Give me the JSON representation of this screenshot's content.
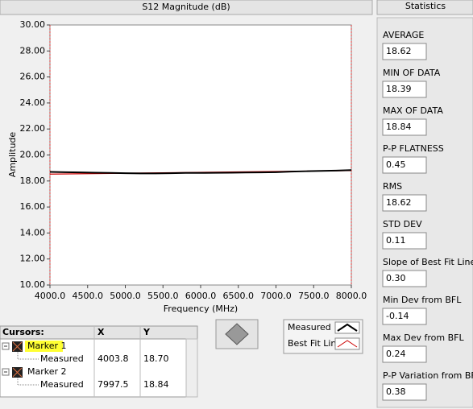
{
  "chart_data": {
    "type": "line",
    "title": "S12 Magnitude (dB)",
    "x_label": "Frequency (MHz)",
    "y_label": "Amplitude",
    "xlim": [
      4000,
      8000
    ],
    "xticks": [
      {
        "value": 4000,
        "label": "4000.0"
      },
      {
        "value": 4500,
        "label": "4500.0"
      },
      {
        "value": 5000,
        "label": "5000.0"
      },
      {
        "value": 5500,
        "label": "5500.0"
      },
      {
        "value": 6000,
        "label": "6000.0"
      },
      {
        "value": 6500,
        "label": "6500.0"
      },
      {
        "value": 7000,
        "label": "7000.0"
      },
      {
        "value": 7500,
        "label": "7500.0"
      },
      {
        "value": 8000,
        "label": "8000.0"
      }
    ],
    "ylim": [
      10,
      30
    ],
    "yticks": [
      {
        "value": 10,
        "label": "10.00"
      },
      {
        "value": 12,
        "label": "12.00"
      },
      {
        "value": 14,
        "label": "14.00"
      },
      {
        "value": 16,
        "label": "16.00"
      },
      {
        "value": 18,
        "label": "18.00"
      },
      {
        "value": 20,
        "label": "20.00"
      },
      {
        "value": 22,
        "label": "22.00"
      },
      {
        "value": 24,
        "label": "24.00"
      },
      {
        "value": 26,
        "label": "26.00"
      },
      {
        "value": 28,
        "label": "28.00"
      },
      {
        "value": 30,
        "label": "30.00"
      }
    ],
    "series": [
      {
        "name": "Measured",
        "color": "#000000",
        "x": [
          4000,
          4200,
          4400,
          4600,
          4800,
          5000,
          5200,
          5400,
          5600,
          5800,
          6000,
          6200,
          6400,
          6600,
          6800,
          7000,
          7200,
          7400,
          7600,
          7800,
          8000
        ],
        "values": [
          18.7,
          18.68,
          18.66,
          18.64,
          18.62,
          18.6,
          18.58,
          18.58,
          18.6,
          18.62,
          18.62,
          18.63,
          18.64,
          18.65,
          18.66,
          18.68,
          18.72,
          18.75,
          18.78,
          18.8,
          18.84
        ]
      },
      {
        "name": "Best Fit Line",
        "color": "#cc0000",
        "x": [
          4000,
          8000
        ],
        "values": [
          18.53,
          18.8
        ]
      }
    ]
  },
  "cursors": {
    "headers": [
      "Cursors:",
      "X",
      "Y"
    ],
    "rows": [
      {
        "name": "Marker 1",
        "plot": "Measured",
        "x": "4003.8",
        "y": "18.70"
      },
      {
        "name": "Marker 2",
        "plot": "Measured",
        "x": "7997.5",
        "y": "18.84"
      }
    ]
  },
  "statistics": {
    "title": "Statistics",
    "items": [
      {
        "label": "AVERAGE",
        "value": "18.62"
      },
      {
        "label": "MIN OF DATA",
        "value": "18.39"
      },
      {
        "label": "MAX OF DATA",
        "value": "18.84"
      },
      {
        "label": "P-P FLATNESS",
        "value": "0.45"
      },
      {
        "label": "RMS",
        "value": "18.62"
      },
      {
        "label": "STD DEV",
        "value": "0.11"
      },
      {
        "label": "Slope of Best Fit Line",
        "value": "0.30"
      },
      {
        "label": "Min Dev from BFL",
        "value": "-0.14"
      },
      {
        "label": "Max Dev from BFL",
        "value": "0.24"
      },
      {
        "label": "P-P Variation from BFL",
        "value": "0.38"
      }
    ]
  }
}
